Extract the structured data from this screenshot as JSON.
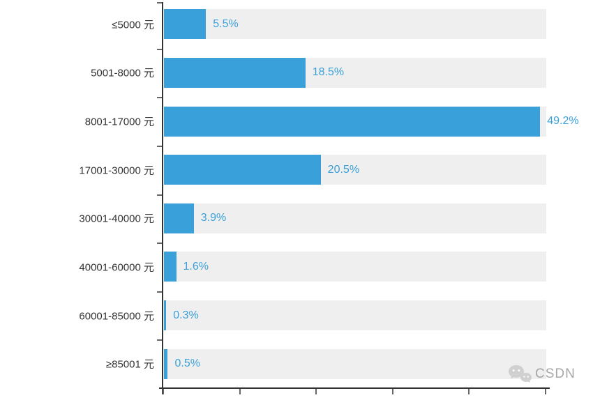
{
  "chart_data": {
    "type": "bar",
    "orientation": "horizontal",
    "title": "",
    "xlabel": "",
    "ylabel": "",
    "categories": [
      "≤5000 元",
      "5001-8000 元",
      "8001-17000 元",
      "17001-30000 元",
      "30001-40000 元",
      "40001-60000 元",
      "60001-85000 元",
      "≥85001 元"
    ],
    "values": [
      5.5,
      18.5,
      49.2,
      20.5,
      3.9,
      1.6,
      0.3,
      0.5
    ],
    "value_labels": [
      "5.5%",
      "18.5%",
      "49.2%",
      "20.5%",
      "3.9%",
      "1.6%",
      "0.3%",
      "0.5%"
    ],
    "xlim": [
      0,
      50
    ],
    "x_tick_step": 10,
    "x_tick_labels_visible": false,
    "grid": false,
    "legend": null
  },
  "colors": {
    "bar": "#3AA0DA",
    "track": "#EFEFEF",
    "axis": "#333333",
    "tick": "#666666",
    "category_label": "#333333",
    "value_label": "#3AA0DA",
    "watermark": "#9E9E9E"
  },
  "watermark": {
    "text": "CSDN",
    "icon": "chat-bubbles-icon"
  }
}
